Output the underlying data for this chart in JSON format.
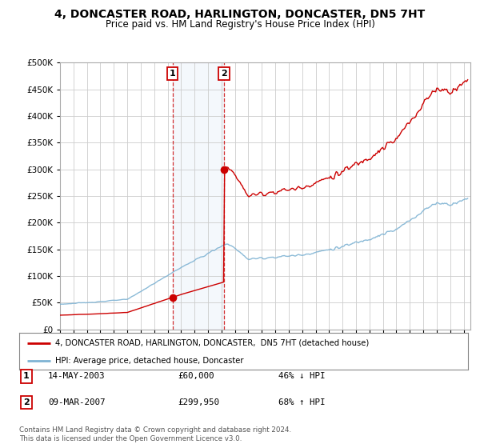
{
  "title": "4, DONCASTER ROAD, HARLINGTON, DONCASTER, DN5 7HT",
  "subtitle": "Price paid vs. HM Land Registry's House Price Index (HPI)",
  "ylim": [
    0,
    500000
  ],
  "yticks": [
    0,
    50000,
    100000,
    150000,
    200000,
    250000,
    300000,
    350000,
    400000,
    450000,
    500000
  ],
  "ytick_labels": [
    "£0",
    "£50K",
    "£100K",
    "£150K",
    "£200K",
    "£250K",
    "£300K",
    "£350K",
    "£400K",
    "£450K",
    "£500K"
  ],
  "xlim_start": 1995.0,
  "xlim_end": 2025.5,
  "background_color": "#ffffff",
  "plot_bg_color": "#ffffff",
  "grid_color": "#cccccc",
  "sale1_date": 2003.37,
  "sale1_price": 60000,
  "sale1_label": "1",
  "sale2_date": 2007.19,
  "sale2_price": 299950,
  "sale2_label": "2",
  "sale_color": "#cc0000",
  "hpi_color": "#7fb3d3",
  "legend_sale_label": "4, DONCASTER ROAD, HARLINGTON, DONCASTER,  DN5 7HT (detached house)",
  "legend_hpi_label": "HPI: Average price, detached house, Doncaster",
  "annotation1_date": "14-MAY-2003",
  "annotation1_price": "£60,000",
  "annotation1_hpi": "46% ↓ HPI",
  "annotation2_date": "09-MAR-2007",
  "annotation2_price": "£299,950",
  "annotation2_hpi": "68% ↑ HPI",
  "footer": "Contains HM Land Registry data © Crown copyright and database right 2024.\nThis data is licensed under the Open Government Licence v3.0.",
  "shade1_x_start": 2003.37,
  "shade1_x_end": 2007.19,
  "title_fontsize": 10,
  "subtitle_fontsize": 8.5,
  "tick_fontsize": 7.5
}
